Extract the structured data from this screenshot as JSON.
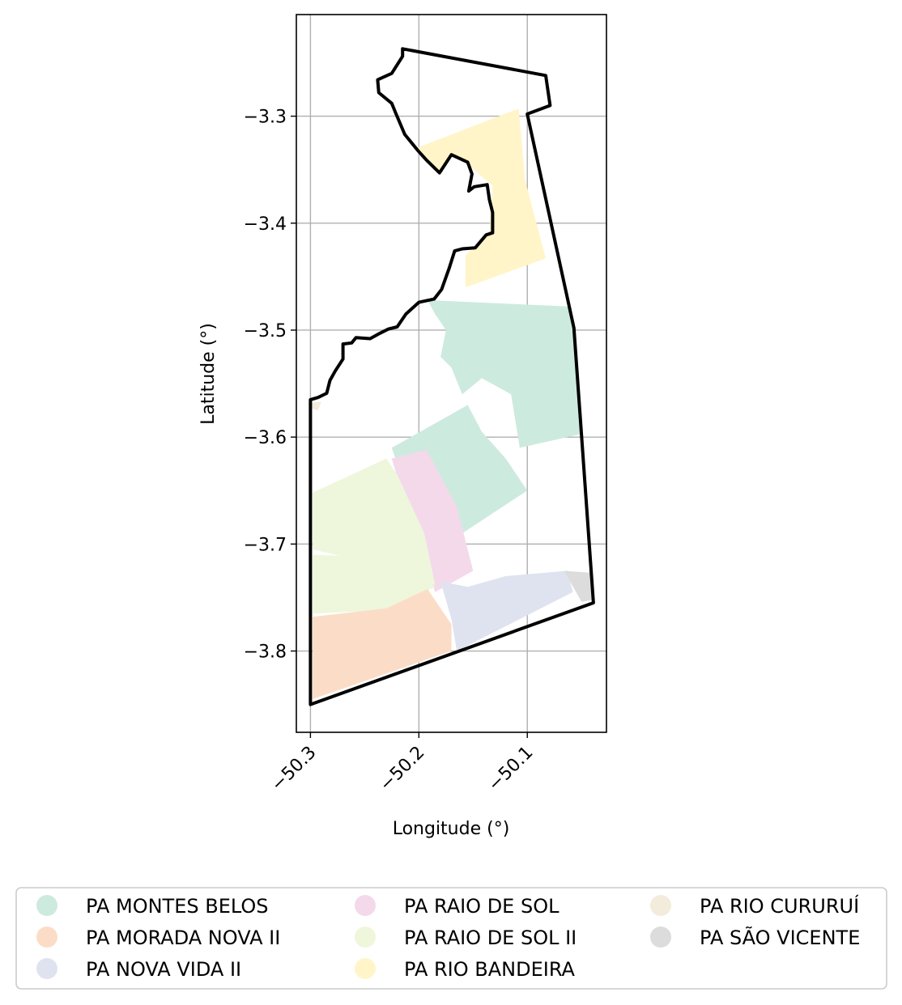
{
  "chart_data": {
    "type": "map",
    "xlabel": "Longitude (°)",
    "ylabel": "Latitude (°)",
    "xlim": [
      -50.313,
      -50.027
    ],
    "ylim": [
      -3.876,
      -3.205
    ],
    "grid": true,
    "x_ticks": [
      {
        "value": -50.3,
        "label": "−50.3"
      },
      {
        "value": -50.2,
        "label": "−50.2"
      },
      {
        "value": -50.1,
        "label": "−50.1"
      }
    ],
    "y_ticks": [
      {
        "value": -3.3,
        "label": "−3.3"
      },
      {
        "value": -3.4,
        "label": "−3.4"
      },
      {
        "value": -3.5,
        "label": "−3.5"
      },
      {
        "value": -3.6,
        "label": "−3.6"
      },
      {
        "value": -3.7,
        "label": "−3.7"
      },
      {
        "value": -3.8,
        "label": "−3.8"
      }
    ],
    "legend_position": "bottom",
    "legend": [
      {
        "name": "PA MONTES BELOS",
        "color": "#cdeade"
      },
      {
        "name": "PA MORADA NOVA II",
        "color": "#fbddc7"
      },
      {
        "name": "PA NOVA VIDA II",
        "color": "#dfe3f0"
      },
      {
        "name": "PA RAIO DE SOL",
        "color": "#f4d9eb"
      },
      {
        "name": "PA RAIO DE SOL II",
        "color": "#eef7dc"
      },
      {
        "name": "PA RIO BANDEIRA",
        "color": "#fff5c8"
      },
      {
        "name": "PA RIO CURURUÍ",
        "color": "#f3ebdc"
      },
      {
        "name": "PA SÃO VICENTE",
        "color": "#dcdcdc"
      }
    ],
    "outline_color": "#000000",
    "outline": [
      [
        -50.215,
        -3.237
      ],
      [
        -50.083,
        -3.262
      ],
      [
        -50.079,
        -3.29
      ],
      [
        -50.1,
        -3.298
      ],
      [
        -50.057,
        -3.498
      ],
      [
        -50.039,
        -3.755
      ],
      [
        -50.3,
        -3.85
      ],
      [
        -50.3,
        -3.565
      ],
      [
        -50.293,
        -3.563
      ],
      [
        -50.285,
        -3.559
      ],
      [
        -50.282,
        -3.547
      ],
      [
        -50.277,
        -3.538
      ],
      [
        -50.27,
        -3.527
      ],
      [
        -50.27,
        -3.513
      ],
      [
        -50.262,
        -3.512
      ],
      [
        -50.258,
        -3.507
      ],
      [
        -50.245,
        -3.508
      ],
      [
        -50.236,
        -3.503
      ],
      [
        -50.228,
        -3.499
      ],
      [
        -50.22,
        -3.497
      ],
      [
        -50.212,
        -3.485
      ],
      [
        -50.2,
        -3.474
      ],
      [
        -50.186,
        -3.471
      ],
      [
        -50.179,
        -3.462
      ],
      [
        -50.172,
        -3.442
      ],
      [
        -50.167,
        -3.426
      ],
      [
        -50.16,
        -3.424
      ],
      [
        -50.148,
        -3.423
      ],
      [
        -50.138,
        -3.411
      ],
      [
        -50.132,
        -3.409
      ],
      [
        -50.132,
        -3.39
      ],
      [
        -50.135,
        -3.378
      ],
      [
        -50.137,
        -3.364
      ],
      [
        -50.149,
        -3.366
      ],
      [
        -50.154,
        -3.37
      ],
      [
        -50.151,
        -3.354
      ],
      [
        -50.155,
        -3.343
      ],
      [
        -50.17,
        -3.336
      ],
      [
        -50.181,
        -3.353
      ],
      [
        -50.193,
        -3.341
      ],
      [
        -50.201,
        -3.332
      ],
      [
        -50.213,
        -3.317
      ],
      [
        -50.221,
        -3.298
      ],
      [
        -50.225,
        -3.288
      ],
      [
        -50.237,
        -3.278
      ],
      [
        -50.238,
        -3.266
      ],
      [
        -50.225,
        -3.26
      ],
      [
        -50.215,
        -3.244
      ]
    ],
    "polygons": [
      {
        "name": "PA RIO BANDEIRA",
        "points": [
          [
            -50.203,
            -3.33
          ],
          [
            -50.108,
            -3.293
          ],
          [
            -50.102,
            -3.36
          ],
          [
            -50.083,
            -3.433
          ],
          [
            -50.157,
            -3.46
          ],
          [
            -50.157,
            -3.43
          ],
          [
            -50.135,
            -3.41
          ],
          [
            -50.132,
            -3.365
          ],
          [
            -50.155,
            -3.345
          ],
          [
            -50.17,
            -3.336
          ],
          [
            -50.181,
            -3.353
          ],
          [
            -50.193,
            -3.341
          ]
        ]
      },
      {
        "name": "PA MONTES BELOS",
        "points": [
          [
            -50.192,
            -3.472
          ],
          [
            -50.06,
            -3.478
          ],
          [
            -50.05,
            -3.597
          ],
          [
            -50.107,
            -3.61
          ],
          [
            -50.115,
            -3.56
          ],
          [
            -50.142,
            -3.545
          ],
          [
            -50.16,
            -3.56
          ],
          [
            -50.17,
            -3.535
          ],
          [
            -50.18,
            -3.525
          ],
          [
            -50.175,
            -3.5
          ],
          [
            -50.185,
            -3.485
          ]
        ]
      },
      {
        "name": "PA MONTES BELOS",
        "points": [
          [
            -50.225,
            -3.61
          ],
          [
            -50.155,
            -3.57
          ],
          [
            -50.142,
            -3.595
          ],
          [
            -50.12,
            -3.62
          ],
          [
            -50.1,
            -3.65
          ],
          [
            -50.16,
            -3.69
          ],
          [
            -50.2,
            -3.685
          ]
        ]
      },
      {
        "name": "PA RAIO DE SOL",
        "points": [
          [
            -50.225,
            -3.62
          ],
          [
            -50.193,
            -3.612
          ],
          [
            -50.165,
            -3.665
          ],
          [
            -50.15,
            -3.725
          ],
          [
            -50.185,
            -3.745
          ],
          [
            -50.203,
            -3.695
          ]
        ]
      },
      {
        "name": "PA RAIO DE SOL II",
        "points": [
          [
            -50.298,
            -3.652
          ],
          [
            -50.23,
            -3.62
          ],
          [
            -50.22,
            -3.635
          ],
          [
            -50.195,
            -3.69
          ],
          [
            -50.185,
            -3.738
          ],
          [
            -50.22,
            -3.73
          ],
          [
            -50.255,
            -3.715
          ],
          [
            -50.298,
            -3.705
          ]
        ]
      },
      {
        "name": "PA RAIO DE SOL II",
        "points": [
          [
            -50.298,
            -3.71
          ],
          [
            -50.24,
            -3.712
          ],
          [
            -50.2,
            -3.725
          ],
          [
            -50.185,
            -3.74
          ],
          [
            -50.23,
            -3.762
          ],
          [
            -50.298,
            -3.765
          ]
        ]
      },
      {
        "name": "PA MORADA NOVA II",
        "points": [
          [
            -50.298,
            -3.768
          ],
          [
            -50.23,
            -3.76
          ],
          [
            -50.192,
            -3.742
          ],
          [
            -50.17,
            -3.775
          ],
          [
            -50.17,
            -3.8
          ],
          [
            -50.298,
            -3.845
          ]
        ]
      },
      {
        "name": "PA NOVA VIDA II",
        "points": [
          [
            -50.18,
            -3.735
          ],
          [
            -50.155,
            -3.74
          ],
          [
            -50.12,
            -3.73
          ],
          [
            -50.063,
            -3.725
          ],
          [
            -50.058,
            -3.745
          ],
          [
            -50.165,
            -3.8
          ],
          [
            -50.17,
            -3.77
          ]
        ]
      },
      {
        "name": "PA SÃO VICENTE",
        "points": [
          [
            -50.066,
            -3.725
          ],
          [
            -50.04,
            -3.727
          ],
          [
            -50.039,
            -3.752
          ],
          [
            -50.05,
            -3.754
          ]
        ]
      },
      {
        "name": "PA RIO CURURUÍ",
        "points": [
          [
            -50.301,
            -3.568
          ],
          [
            -50.29,
            -3.567
          ],
          [
            -50.293,
            -3.575
          ],
          [
            -50.3,
            -3.573
          ]
        ]
      }
    ]
  }
}
